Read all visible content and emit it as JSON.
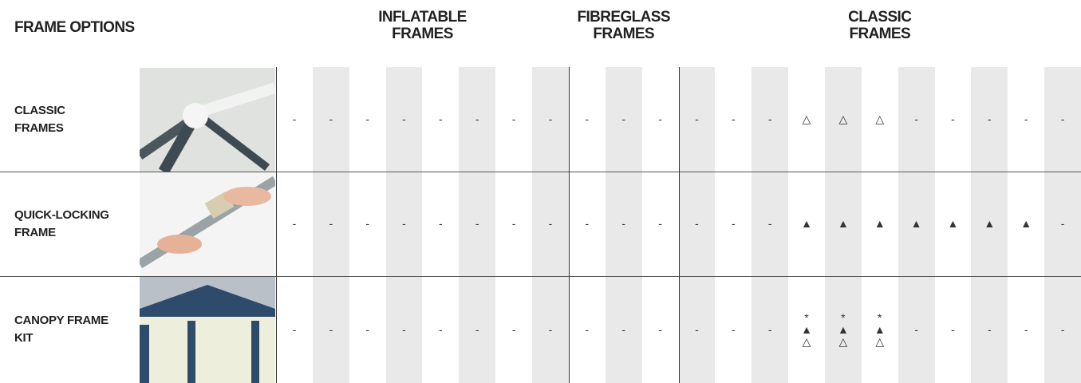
{
  "header": {
    "title": "FRAME OPTIONS",
    "groups": [
      "INFLATABLE\nFRAMES",
      "FIBREGLASS\nFRAMES",
      "CLASSIC\nFRAMES"
    ]
  },
  "table": {
    "rows": [
      {
        "label": "CLASSIC\nFRAMES",
        "cells": [
          "-",
          "-",
          "-",
          "-",
          "-",
          "-",
          "-",
          "-",
          "-",
          "-",
          "-",
          "-",
          "-",
          "-",
          "△",
          "△",
          "△",
          "-",
          "-",
          "-",
          "-",
          "-"
        ]
      },
      {
        "label": "QUICK-LOCKING\nFRAME",
        "cells": [
          "-",
          "-",
          "-",
          "-",
          "-",
          "-",
          "-",
          "-",
          "-",
          "-",
          "-",
          "-",
          "-",
          "-",
          "▲",
          "▲",
          "▲",
          "▲",
          "▲",
          "▲",
          "▲",
          "-"
        ]
      },
      {
        "label": "CANOPY FRAME\nKIT",
        "cells": [
          "-",
          "-",
          "-",
          "-",
          "-",
          "-",
          "-",
          "-",
          "-",
          "-",
          "-",
          "-",
          "-",
          "-",
          "*\n▲\n△",
          "*\n▲\n△",
          "*\n▲\n△",
          "-",
          "-",
          "-",
          "-",
          "-"
        ]
      }
    ]
  }
}
